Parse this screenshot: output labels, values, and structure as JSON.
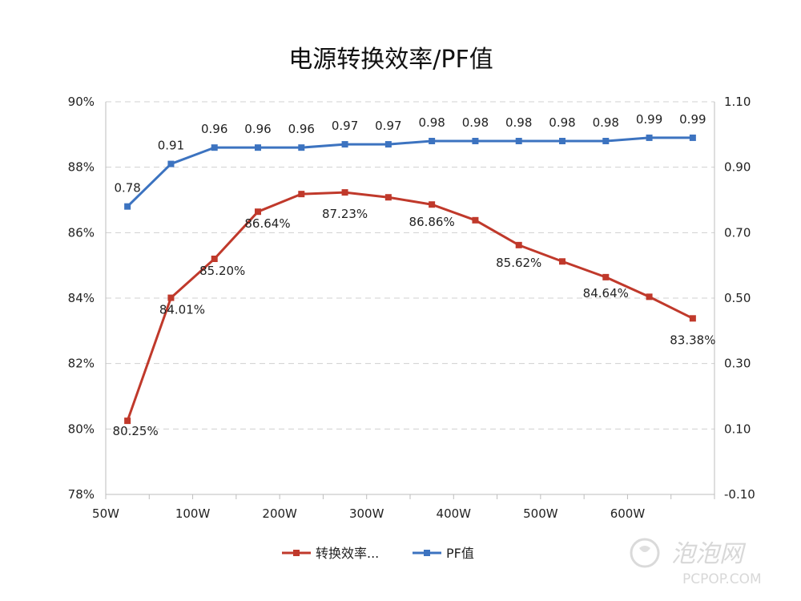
{
  "chart_data": {
    "type": "line",
    "title": "电源转换效率/PF值",
    "categories": [
      "50W",
      "",
      "100W",
      "",
      "200W",
      "",
      "300W",
      "",
      "400W",
      "",
      "500W",
      "",
      "600W",
      ""
    ],
    "y_left": {
      "ticks": [
        "90%",
        "88%",
        "86%",
        "84%",
        "82%",
        "80%",
        "78%"
      ],
      "ylim": [
        78,
        90
      ]
    },
    "y_right": {
      "ticks": [
        "1.10",
        "0.90",
        "0.70",
        "0.50",
        "0.30",
        "0.10",
        "-0.10"
      ],
      "ylim": [
        -0.1,
        1.1
      ]
    },
    "grid": "horizontal dashed",
    "legend_position": "bottom",
    "series": [
      {
        "name": "转换效率...",
        "axis": "left",
        "color": "#c0392b",
        "values": [
          80.25,
          84.01,
          85.2,
          86.64,
          87.18,
          87.23,
          87.08,
          86.86,
          86.38,
          85.62,
          85.12,
          84.64,
          84.04,
          83.38
        ],
        "labels": [
          "80.25%",
          "84.01%",
          "85.20%",
          "86.64%",
          "",
          "87.23%",
          "",
          "86.86%",
          "",
          "85.62%",
          "",
          "84.64%",
          "",
          "83.38%"
        ]
      },
      {
        "name": "PF值",
        "axis": "right",
        "color": "#3c73c0",
        "values": [
          0.78,
          0.91,
          0.96,
          0.96,
          0.96,
          0.97,
          0.97,
          0.98,
          0.98,
          0.98,
          0.98,
          0.98,
          0.99,
          0.99
        ],
        "labels": [
          "0.78",
          "0.91",
          "0.96",
          "0.96",
          "0.96",
          "0.97",
          "0.97",
          "0.98",
          "0.98",
          "0.98",
          "0.98",
          "0.98",
          "0.99",
          "0.99"
        ]
      }
    ]
  },
  "watermark": {
    "logo_text": "泡泡网",
    "url_text": "PCPOP.COM"
  }
}
